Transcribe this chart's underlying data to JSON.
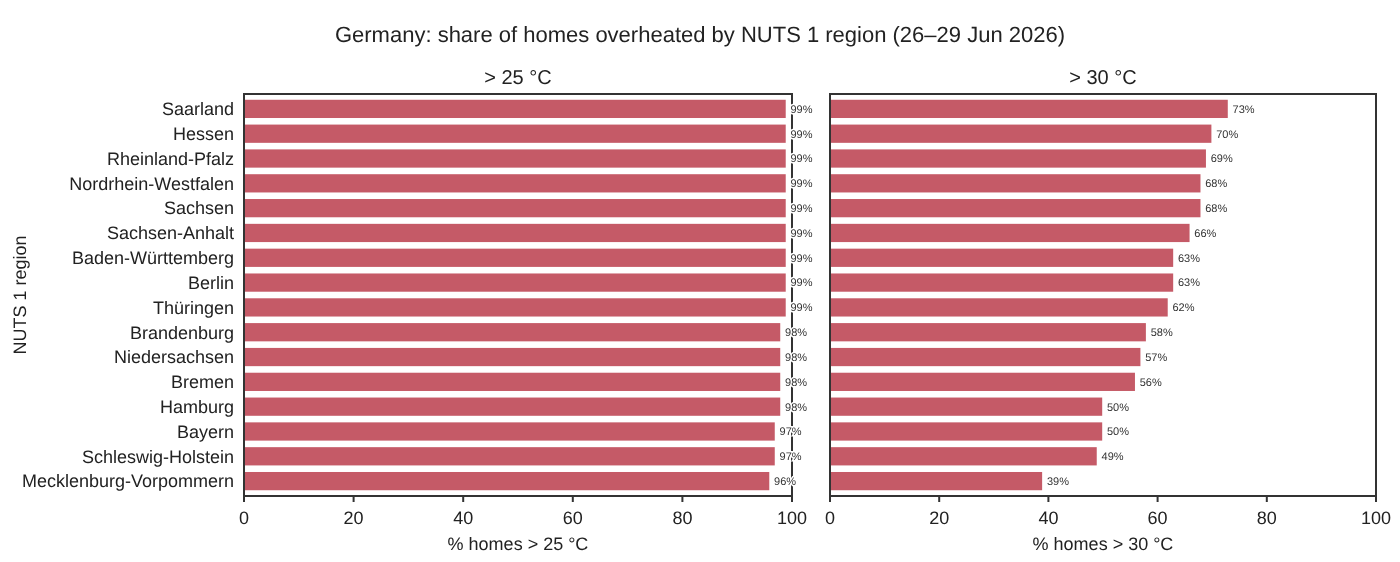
{
  "chart_data": [
    {
      "type": "bar",
      "orientation": "horizontal",
      "title": "Germany: share of homes overheated by NUTS 1 region (26–29 Jun 2026)",
      "subtitle": "> 25 °C",
      "xlabel": "% homes > 25 °C",
      "ylabel": "NUTS 1 region",
      "categories": [
        "Saarland",
        "Hessen",
        "Rheinland-Pfalz",
        "Nordrhein-Westfalen",
        "Sachsen",
        "Sachsen-Anhalt",
        "Baden-Württemberg",
        "Berlin",
        "Thüringen",
        "Brandenburg",
        "Niedersachsen",
        "Bremen",
        "Hamburg",
        "Bayern",
        "Schleswig-Holstein",
        "Mecklenburg-Vorpommern"
      ],
      "values": [
        99,
        99,
        99,
        99,
        99,
        99,
        99,
        99,
        99,
        98,
        98,
        98,
        98,
        97,
        97,
        96
      ],
      "value_labels": [
        "99%",
        "99%",
        "99%",
        "99%",
        "99%",
        "99%",
        "99%",
        "99%",
        "99%",
        "98%",
        "98%",
        "98%",
        "98%",
        "97%",
        "97%",
        "96%"
      ],
      "color": "#c55a67",
      "xlim": [
        0,
        100
      ],
      "xticks": [
        0,
        20,
        40,
        60,
        80,
        100
      ],
      "grid": false
    },
    {
      "type": "bar",
      "orientation": "horizontal",
      "subtitle": "> 30 °C",
      "xlabel": "% homes > 30 °C",
      "categories": [
        null,
        null,
        null,
        null,
        null,
        null,
        null,
        null,
        null,
        null,
        null,
        null,
        null,
        null,
        null,
        null
      ],
      "values": [
        73,
        70,
        69,
        68,
        68,
        66,
        63,
        63,
        62,
        58,
        57,
        56,
        50,
        50,
        49,
        39
      ],
      "value_labels": [
        "73%",
        "70%",
        "69%",
        "68%",
        "68%",
        "66%",
        "63%",
        "63%",
        "62%",
        "58%",
        "57%",
        "56%",
        "50%",
        "50%",
        "49%",
        "39%"
      ],
      "color": "#c55a67",
      "xlim": [
        0,
        100
      ],
      "xticks": [
        0,
        20,
        40,
        60,
        80,
        100
      ],
      "grid": false
    }
  ]
}
